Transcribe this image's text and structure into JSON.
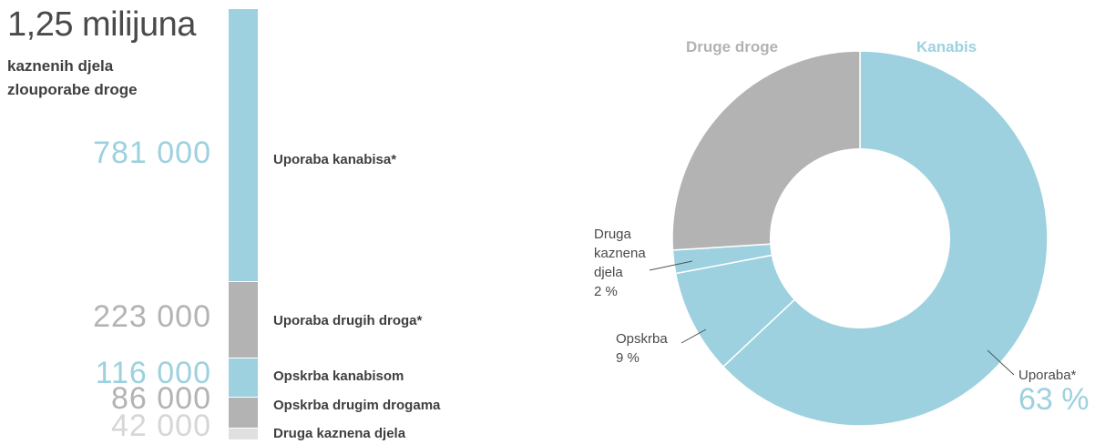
{
  "colors": {
    "cannabis": "#9dd1df",
    "other": "#b3b3b3",
    "misc": "#e0e0e0",
    "title": "#4a4a4a"
  },
  "total": {
    "value": "1,25 milijuna",
    "line1": "kaznenih djela",
    "line2": "zlouporabe droge"
  },
  "chart_data": [
    {
      "type": "bar",
      "orientation": "stacked-vertical",
      "categories": [
        "Uporaba kanabisa*",
        "Uporaba drugih droga*",
        "Opskrba kanabisom",
        "Opskrba drugim drogama",
        "Druga kaznena djela"
      ],
      "values": [
        781000,
        223000,
        116000,
        86000,
        42000
      ],
      "value_labels": [
        "781 000",
        "223 000",
        "116 000",
        "86 000",
        "42 000"
      ],
      "colors": [
        "#9dd1df",
        "#b3b3b3",
        "#9dd1df",
        "#b3b3b3",
        "#e0e0e0"
      ]
    },
    {
      "type": "pie",
      "style": "donut",
      "group_labels": [
        "Kanabis",
        "Druge droge"
      ],
      "slices": [
        {
          "label": "Uporaba*",
          "pct_label": "63 %",
          "value": 63,
          "color": "#9dd1df"
        },
        {
          "label": "Opskrba",
          "pct_label": "9 %",
          "value": 9,
          "color": "#9dd1df"
        },
        {
          "label": "Druga kaznena djela",
          "pct_label": "2 %",
          "value": 2,
          "color": "#9dd1df"
        },
        {
          "label": "",
          "pct_label": "",
          "value": 26,
          "color": "#b3b3b3"
        }
      ]
    }
  ]
}
